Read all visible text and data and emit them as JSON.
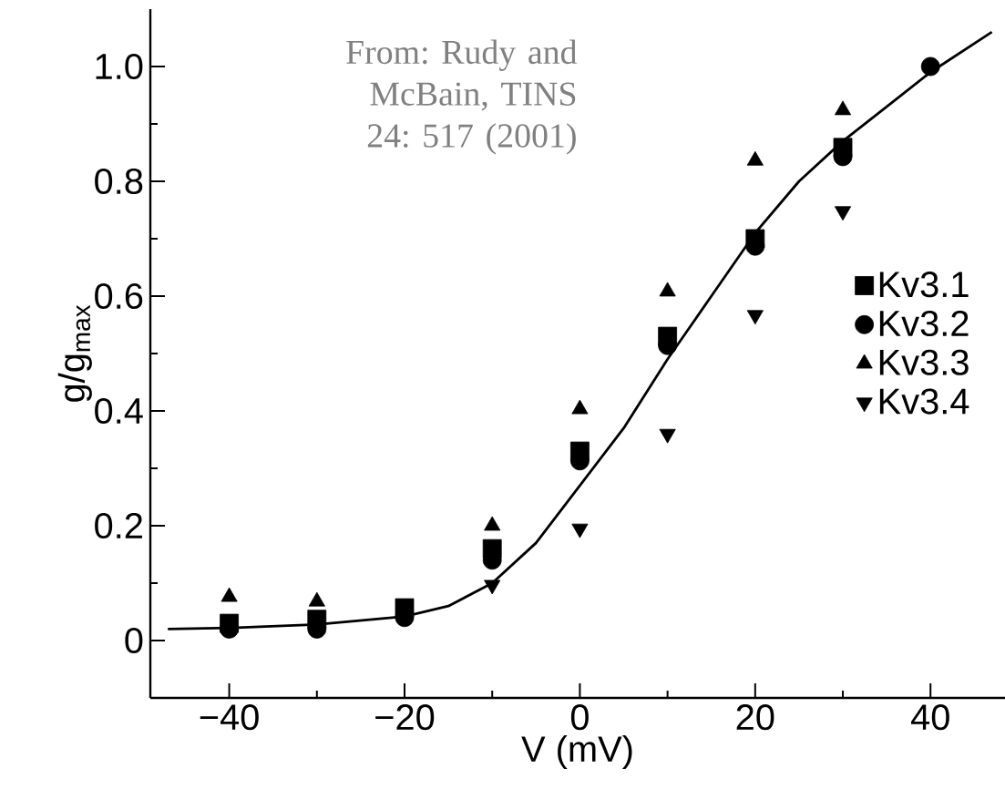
{
  "chart_data": {
    "type": "scatter",
    "xlabel": "V (mV)",
    "ylabel": "g/g$_{max}$",
    "x": [
      -40,
      -30,
      -20,
      -10,
      0,
      10,
      20,
      30,
      40
    ],
    "series": [
      {
        "name": "Kv3.1",
        "color": "#000000",
        "marker": "square",
        "values": [
          0.03,
          0.037,
          0.057,
          0.16,
          0.33,
          0.53,
          0.7,
          0.859,
          null
        ]
      },
      {
        "name": "Kv3.2",
        "color": "#000000",
        "marker": "circle",
        "values": [
          0.02,
          0.02,
          0.04,
          0.14,
          0.313,
          0.514,
          0.687,
          0.843,
          1.0
        ]
      },
      {
        "name": "Kv3.3",
        "color": "#000000",
        "marker": "triangle",
        "values": [
          0.076,
          0.068,
          null,
          0.2,
          0.403,
          0.608,
          0.836,
          0.924,
          null
        ]
      },
      {
        "name": "Kv3.4",
        "color": "#000000",
        "marker": "triangle-down",
        "values": [
          null,
          null,
          null,
          0.097,
          0.195,
          0.36,
          0.567,
          0.748,
          null
        ]
      },
      {
        "type": "line",
        "color": "#000000",
        "marker": "none",
        "line_style": "solid",
        "x": [
          -47,
          -40,
          -30,
          -20,
          -15,
          -10,
          -5,
          0,
          5,
          10,
          15,
          20,
          25,
          30,
          35,
          40,
          47
        ],
        "values": [
          0.02,
          0.022,
          0.028,
          0.042,
          0.06,
          0.1,
          0.17,
          0.27,
          0.37,
          0.49,
          0.6,
          0.71,
          0.8,
          0.87,
          0.93,
          0.99,
          1.06
        ]
      }
    ],
    "xlim": [
      -49,
      48.5
    ],
    "ylim": [
      -0.1,
      1.1
    ],
    "xticks": [
      {
        "value": -40,
        "label": "−40"
      },
      {
        "value": -20,
        "label": "−20"
      },
      0,
      20,
      40
    ],
    "yticks": [
      0,
      0.2,
      0.4,
      0.6,
      0.8,
      {
        "value": 1,
        "label": "1.0"
      }
    ],
    "legend": "right",
    "grid": false,
    "annotations": [
      "From: Rudy and McBain, TINS 24: 517 (2001)"
    ]
  }
}
